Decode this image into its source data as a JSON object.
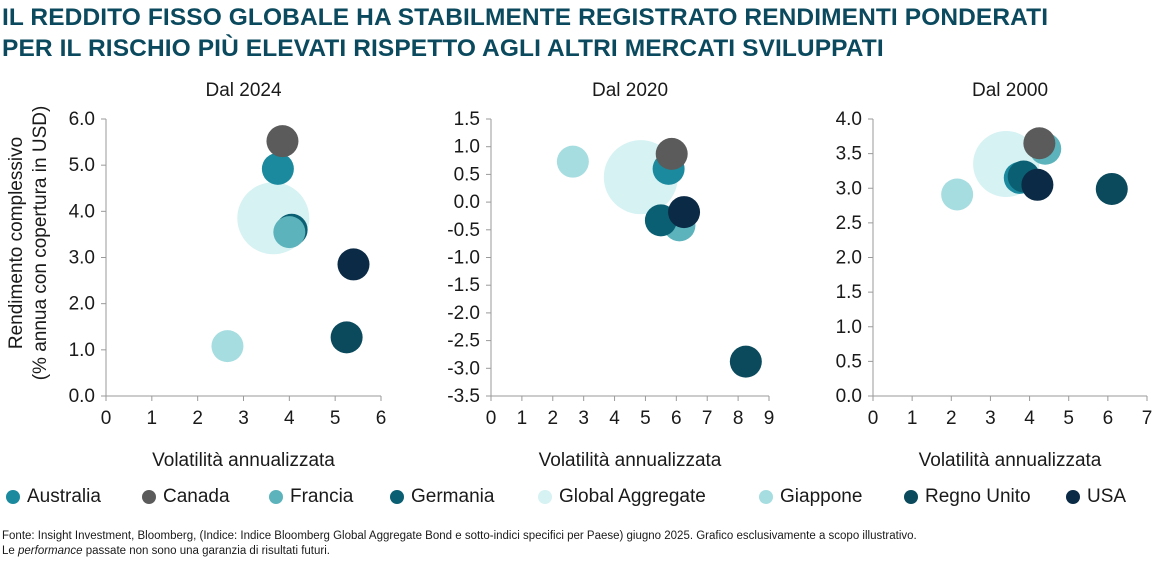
{
  "title_lines": [
    "IL REDDITO FISSO GLOBALE HA STABILMENTE REGISTRATO RENDIMENTI PONDERATI",
    "PER IL RISCHIO PIÙ ELEVATI RISPETTO AGLI ALTRI MERCATI SVILUPPATI"
  ],
  "series_colors": {
    "Australia": "#1c8a9e",
    "Canada": "#5b5b5b",
    "Francia": "#5cb3bb",
    "Germania": "#0a5f72",
    "Global Aggregate": "#d6f2f3",
    "Giappone": "#a6dde0",
    "Regno Unito": "#0a4a5c",
    "USA": "#0a2a45"
  },
  "legend": [
    "Australia",
    "Canada",
    "Francia",
    "Germania",
    "Global Aggregate",
    "Giappone",
    "Regno Unito",
    "USA"
  ],
  "chart_data": [
    {
      "type": "scatter",
      "title": "Dal 2024",
      "xlabel": "Volatilità annualizzata",
      "ylabel_lines": [
        "Rendimento complessivo",
        "(% annua con copertura in USD)"
      ],
      "xlim": [
        0,
        6
      ],
      "ylim": [
        0,
        6
      ],
      "x_ticks": [
        "0",
        "1",
        "2",
        "3",
        "4",
        "5",
        "6"
      ],
      "y_ticks": [
        "0.0",
        "1.0",
        "2.0",
        "3.0",
        "4.0",
        "5.0",
        "6.0"
      ],
      "grid": false,
      "points": [
        {
          "name": "Global Aggregate",
          "x": 3.65,
          "y": 3.85
        },
        {
          "name": "Giappone",
          "x": 2.65,
          "y": 1.08
        },
        {
          "name": "Regno Unito",
          "x": 5.25,
          "y": 1.27
        },
        {
          "name": "USA",
          "x": 5.4,
          "y": 2.85
        },
        {
          "name": "Germania",
          "x": 4.05,
          "y": 3.6
        },
        {
          "name": "Francia",
          "x": 4.0,
          "y": 3.55
        },
        {
          "name": "Australia",
          "x": 3.75,
          "y": 4.92
        },
        {
          "name": "Canada",
          "x": 3.85,
          "y": 5.52
        }
      ]
    },
    {
      "type": "scatter",
      "title": "Dal 2020",
      "xlabel": "Volatilità annualizzata",
      "xlim": [
        0,
        9
      ],
      "ylim": [
        -3.5,
        1.5
      ],
      "x_ticks": [
        "0",
        "1",
        "2",
        "3",
        "4",
        "5",
        "6",
        "7",
        "8",
        "9"
      ],
      "y_ticks": [
        "1.5",
        "1.0",
        "0.5",
        "0.0",
        "-0.5",
        "-1.0",
        "-1.5",
        "-2.0",
        "-2.5",
        "-3.0",
        "-3.5"
      ],
      "grid": false,
      "points": [
        {
          "name": "Global Aggregate",
          "x": 4.85,
          "y": 0.45
        },
        {
          "name": "Giappone",
          "x": 2.65,
          "y": 0.73
        },
        {
          "name": "Australia",
          "x": 5.75,
          "y": 0.6
        },
        {
          "name": "Canada",
          "x": 5.85,
          "y": 0.87
        },
        {
          "name": "Francia",
          "x": 6.1,
          "y": -0.42
        },
        {
          "name": "Germania",
          "x": 5.5,
          "y": -0.33
        },
        {
          "name": "USA",
          "x": 6.25,
          "y": -0.18
        },
        {
          "name": "Regno Unito",
          "x": 8.25,
          "y": -2.88
        }
      ]
    },
    {
      "type": "scatter",
      "title": "Dal 2000",
      "xlabel": "Volatilità annualizzata",
      "xlim": [
        0,
        7
      ],
      "ylim": [
        0,
        4
      ],
      "x_ticks": [
        "0",
        "1",
        "2",
        "3",
        "4",
        "5",
        "6",
        "7"
      ],
      "y_ticks": [
        "0.0",
        "0.5",
        "1.0",
        "1.5",
        "2.0",
        "2.5",
        "3.0",
        "3.5",
        "4.0"
      ],
      "grid": false,
      "points": [
        {
          "name": "Global Aggregate",
          "x": 3.4,
          "y": 3.35
        },
        {
          "name": "Giappone",
          "x": 2.15,
          "y": 2.91
        },
        {
          "name": "Francia",
          "x": 4.4,
          "y": 3.57
        },
        {
          "name": "Canada",
          "x": 4.25,
          "y": 3.65
        },
        {
          "name": "Australia",
          "x": 3.75,
          "y": 3.15
        },
        {
          "name": "Germania",
          "x": 3.85,
          "y": 3.17
        },
        {
          "name": "USA",
          "x": 4.2,
          "y": 3.05
        },
        {
          "name": "Regno Unito",
          "x": 6.1,
          "y": 2.99
        }
      ]
    }
  ],
  "footer": {
    "line1": "Fonte: Insight Investment, Bloomberg, (Indice: Indice Bloomberg Global Aggregate Bond e sotto-indici specifici per Paese) giugno 2025. Grafico esclusivamente a scopo illustrativo.",
    "line2_pre": "Le ",
    "line2_em": "performance",
    "line2_post": " passate non sono una garanzia di risultati futuri."
  }
}
